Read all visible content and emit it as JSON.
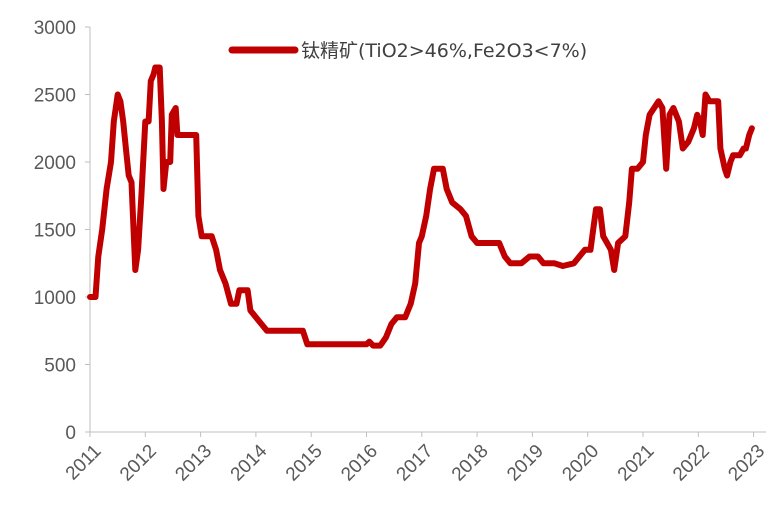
{
  "chart_data": {
    "type": "line",
    "title": "",
    "xlabel": "",
    "ylabel": "",
    "ylim": [
      0,
      3000
    ],
    "xlim": [
      2011.0,
      2023.25
    ],
    "y_ticks": [
      "0",
      "500",
      "1000",
      "1500",
      "2000",
      "2500",
      "3000"
    ],
    "x_ticks": [
      "2011",
      "2012",
      "2013",
      "2014",
      "2015",
      "2016",
      "2017",
      "2018",
      "2019",
      "2020",
      "2021",
      "2022",
      "2023"
    ],
    "grid": false,
    "legend_position": "top",
    "series": [
      {
        "name": "钛精矿(TiO2>46%,Fe2O3<7%)",
        "color": "#c00000",
        "points": [
          [
            2011.0,
            1000
          ],
          [
            2011.1,
            1000
          ],
          [
            2011.15,
            1300
          ],
          [
            2011.22,
            1500
          ],
          [
            2011.3,
            1800
          ],
          [
            2011.38,
            2000
          ],
          [
            2011.43,
            2300
          ],
          [
            2011.5,
            2500
          ],
          [
            2011.55,
            2450
          ],
          [
            2011.6,
            2300
          ],
          [
            2011.65,
            2100
          ],
          [
            2011.7,
            1900
          ],
          [
            2011.75,
            1850
          ],
          [
            2011.82,
            1200
          ],
          [
            2011.87,
            1350
          ],
          [
            2011.93,
            1750
          ],
          [
            2012.0,
            2300
          ],
          [
            2012.06,
            2300
          ],
          [
            2012.1,
            2600
          ],
          [
            2012.15,
            2650
          ],
          [
            2012.18,
            2700
          ],
          [
            2012.26,
            2700
          ],
          [
            2012.3,
            2300
          ],
          [
            2012.33,
            1800
          ],
          [
            2012.38,
            2000
          ],
          [
            2012.45,
            2000
          ],
          [
            2012.48,
            2350
          ],
          [
            2012.55,
            2400
          ],
          [
            2012.58,
            2200
          ],
          [
            2012.92,
            2200
          ],
          [
            2012.96,
            1600
          ],
          [
            2013.02,
            1450
          ],
          [
            2013.1,
            1450
          ],
          [
            2013.2,
            1450
          ],
          [
            2013.28,
            1350
          ],
          [
            2013.35,
            1200
          ],
          [
            2013.45,
            1100
          ],
          [
            2013.55,
            950
          ],
          [
            2013.65,
            950
          ],
          [
            2013.7,
            1050
          ],
          [
            2013.85,
            1050
          ],
          [
            2013.9,
            900
          ],
          [
            2014.0,
            850
          ],
          [
            2014.1,
            800
          ],
          [
            2014.2,
            750
          ],
          [
            2014.4,
            750
          ],
          [
            2014.6,
            750
          ],
          [
            2014.85,
            750
          ],
          [
            2014.93,
            650
          ],
          [
            2015.2,
            650
          ],
          [
            2015.5,
            650
          ],
          [
            2015.8,
            650
          ],
          [
            2016.0,
            650
          ],
          [
            2016.05,
            670
          ],
          [
            2016.12,
            640
          ],
          [
            2016.25,
            640
          ],
          [
            2016.35,
            700
          ],
          [
            2016.45,
            800
          ],
          [
            2016.55,
            850
          ],
          [
            2016.7,
            850
          ],
          [
            2016.8,
            950
          ],
          [
            2016.88,
            1100
          ],
          [
            2016.95,
            1400
          ],
          [
            2017.0,
            1450
          ],
          [
            2017.08,
            1600
          ],
          [
            2017.15,
            1800
          ],
          [
            2017.22,
            1950
          ],
          [
            2017.38,
            1950
          ],
          [
            2017.45,
            1800
          ],
          [
            2017.55,
            1700
          ],
          [
            2017.7,
            1650
          ],
          [
            2017.8,
            1600
          ],
          [
            2017.9,
            1450
          ],
          [
            2018.0,
            1400
          ],
          [
            2018.2,
            1400
          ],
          [
            2018.4,
            1400
          ],
          [
            2018.5,
            1300
          ],
          [
            2018.6,
            1250
          ],
          [
            2018.8,
            1250
          ],
          [
            2018.95,
            1300
          ],
          [
            2019.1,
            1300
          ],
          [
            2019.2,
            1250
          ],
          [
            2019.4,
            1250
          ],
          [
            2019.55,
            1230
          ],
          [
            2019.75,
            1250
          ],
          [
            2019.85,
            1300
          ],
          [
            2019.95,
            1350
          ],
          [
            2020.05,
            1350
          ],
          [
            2020.1,
            1500
          ],
          [
            2020.15,
            1650
          ],
          [
            2020.22,
            1650
          ],
          [
            2020.28,
            1450
          ],
          [
            2020.35,
            1400
          ],
          [
            2020.42,
            1350
          ],
          [
            2020.48,
            1200
          ],
          [
            2020.55,
            1400
          ],
          [
            2020.68,
            1450
          ],
          [
            2020.75,
            1700
          ],
          [
            2020.8,
            1950
          ],
          [
            2020.85,
            1950
          ],
          [
            2020.9,
            1950
          ],
          [
            2021.0,
            2000
          ],
          [
            2021.05,
            2200
          ],
          [
            2021.12,
            2350
          ],
          [
            2021.2,
            2400
          ],
          [
            2021.28,
            2450
          ],
          [
            2021.35,
            2400
          ],
          [
            2021.42,
            1950
          ],
          [
            2021.48,
            2350
          ],
          [
            2021.55,
            2400
          ],
          [
            2021.65,
            2300
          ],
          [
            2021.72,
            2100
          ],
          [
            2021.82,
            2150
          ],
          [
            2021.92,
            2250
          ],
          [
            2021.98,
            2350
          ],
          [
            2022.03,
            2300
          ],
          [
            2022.08,
            2200
          ],
          [
            2022.13,
            2500
          ],
          [
            2022.2,
            2450
          ],
          [
            2022.3,
            2450
          ],
          [
            2022.36,
            2450
          ],
          [
            2022.4,
            2100
          ],
          [
            2022.48,
            1950
          ],
          [
            2022.52,
            1900
          ],
          [
            2022.58,
            2000
          ],
          [
            2022.63,
            2050
          ],
          [
            2022.75,
            2050
          ],
          [
            2022.82,
            2100
          ],
          [
            2022.86,
            2100
          ],
          [
            2022.92,
            2200
          ],
          [
            2022.97,
            2250
          ]
        ]
      }
    ]
  }
}
